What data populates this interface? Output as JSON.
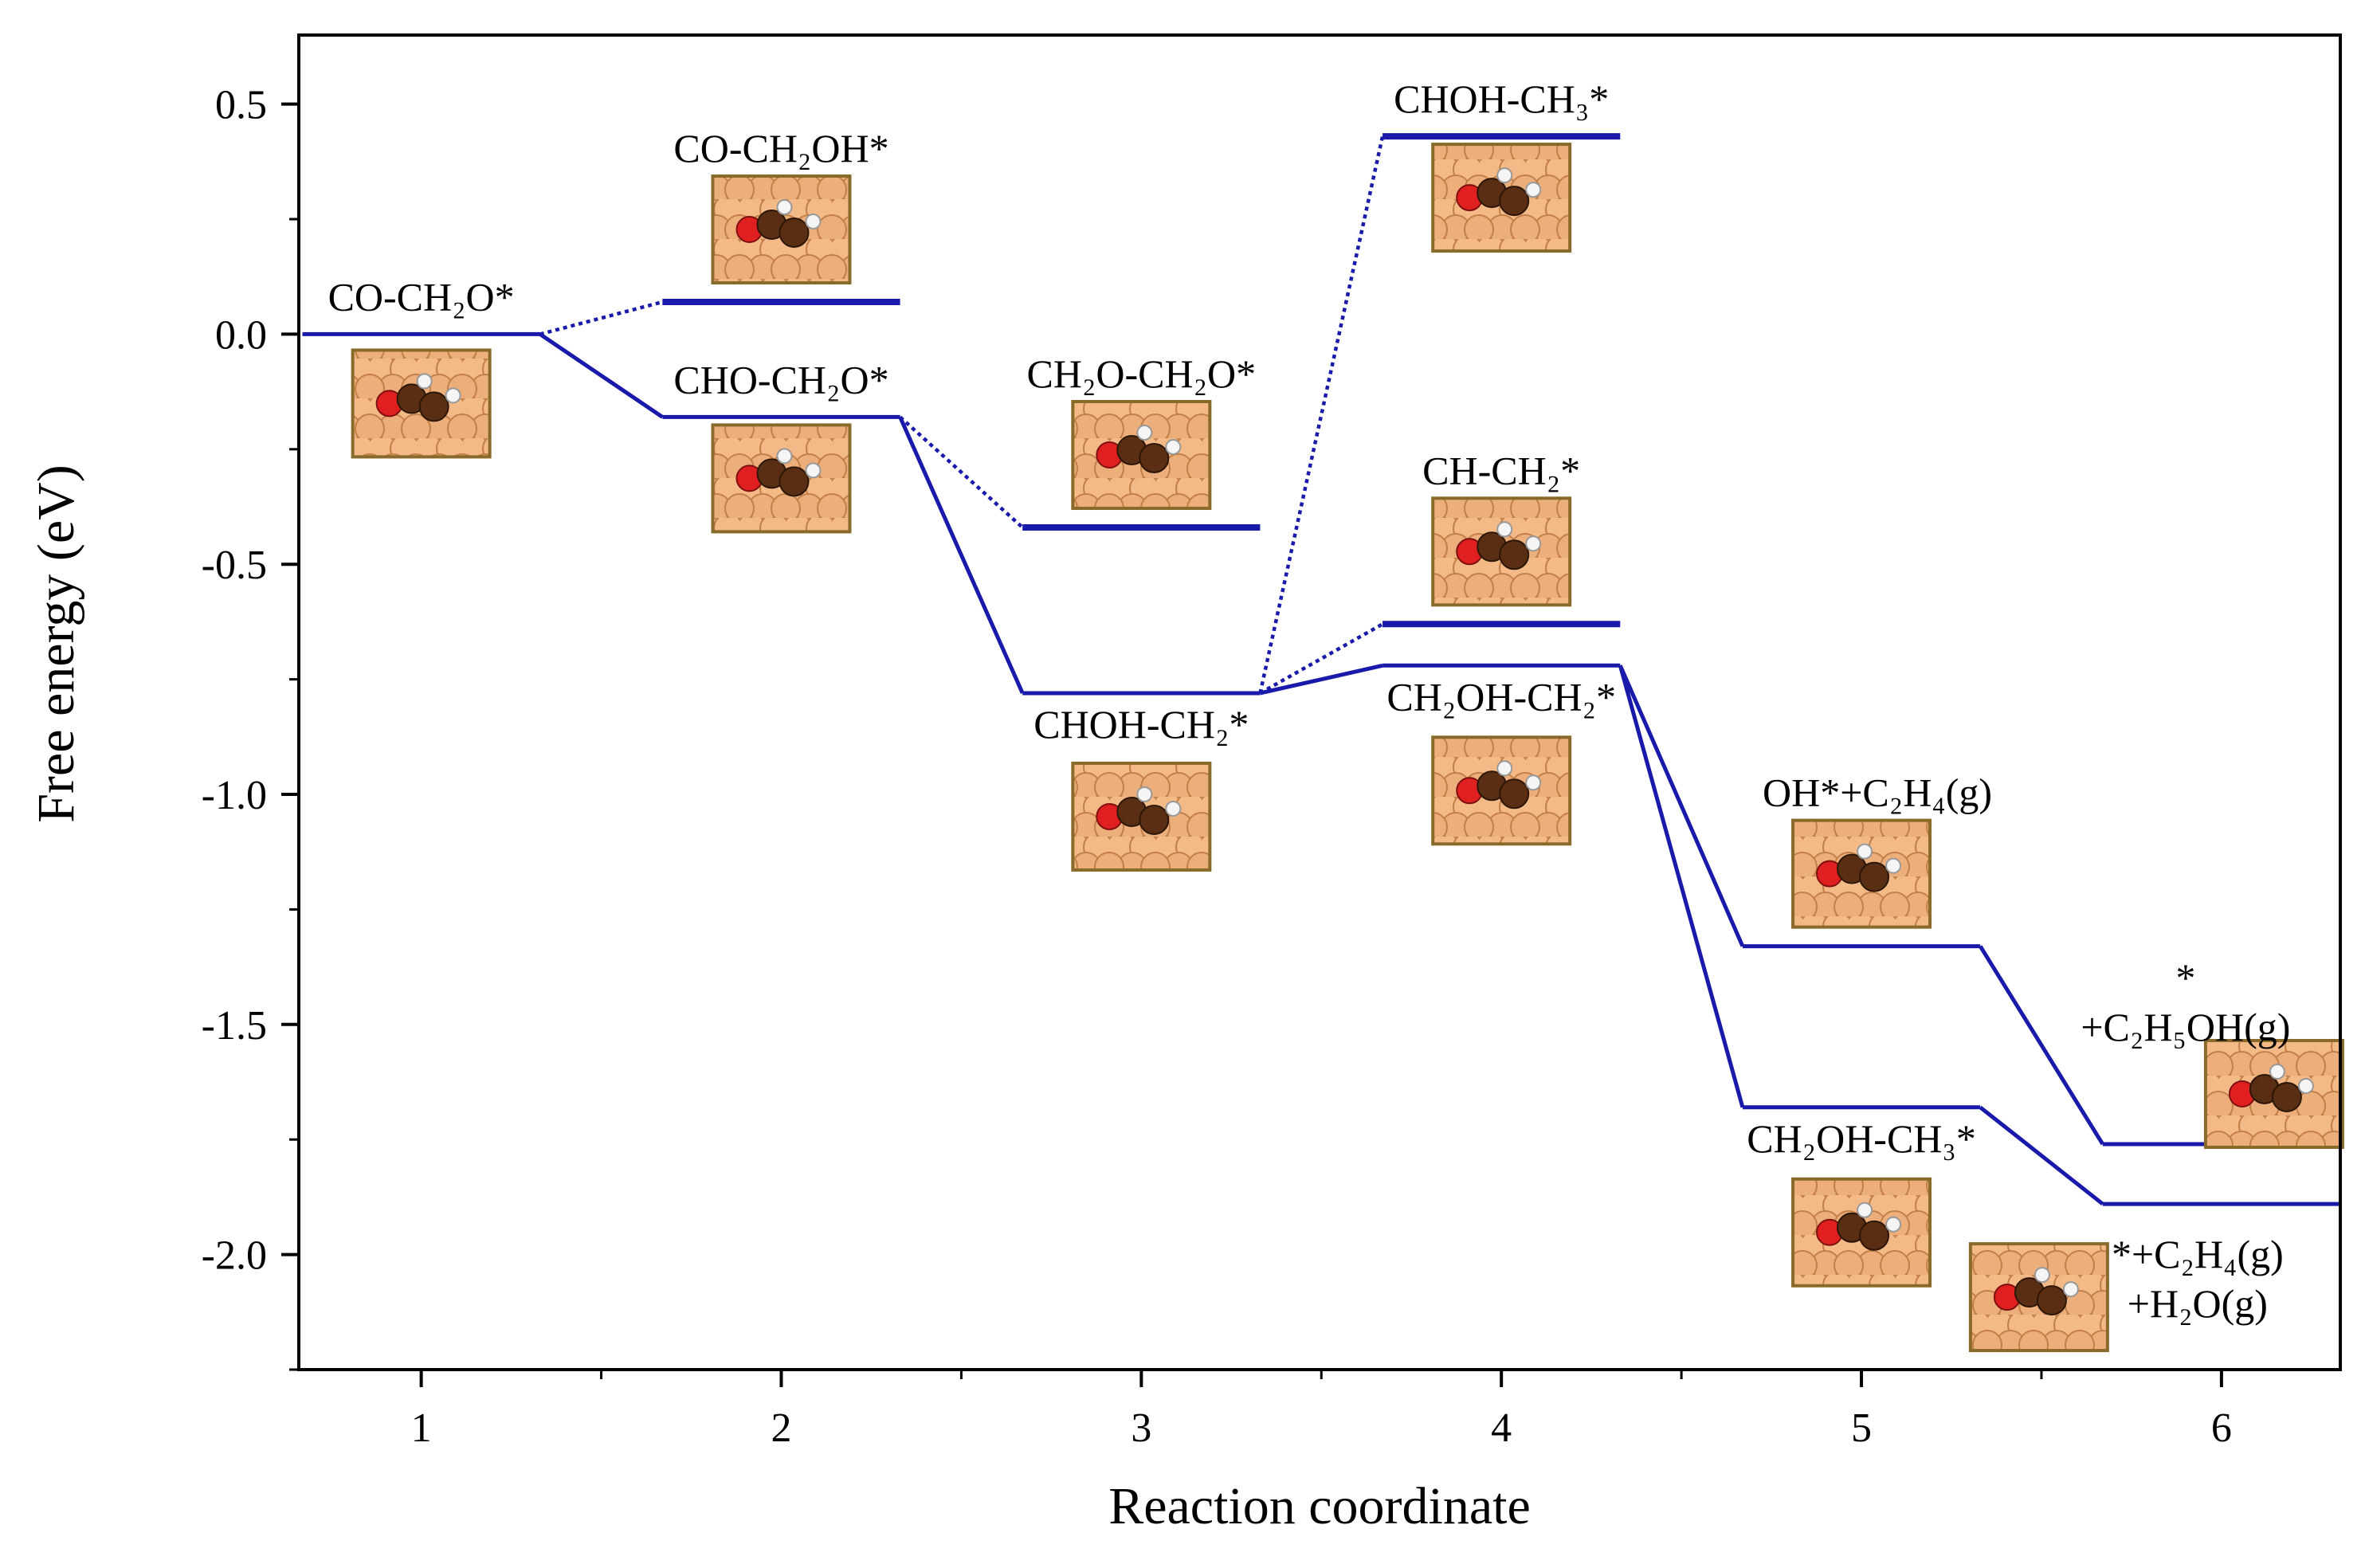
{
  "chart_data": {
    "type": "line",
    "title": "",
    "xlabel": "Reaction coordinate",
    "ylabel": "Free energy (eV)",
    "xlim": [
      0.66,
      6.33
    ],
    "ylim": [
      -2.25,
      0.65
    ],
    "xticks": [
      1,
      2,
      3,
      4,
      5,
      6
    ],
    "xtick_labels": [
      "1",
      "2",
      "3",
      "4",
      "5",
      "6"
    ],
    "yticks": [
      0.5,
      0.0,
      -0.5,
      -1.0,
      -1.5,
      -2.0
    ],
    "ytick_labels": [
      "0.5",
      "0.0",
      "-0.5",
      "-1.0",
      "-1.5",
      "-2.0"
    ],
    "grid": false,
    "line_color": "#1a1aaa",
    "levels": [
      {
        "id": "co-ch2o",
        "x": 1,
        "energy": 0.0,
        "label": "CO-CH₂O*",
        "label_pos": "above",
        "path": "main"
      },
      {
        "id": "co-ch2oh",
        "x": 2,
        "energy": 0.07,
        "label": "CO-CH₂OH*",
        "label_pos": "above",
        "path": "side"
      },
      {
        "id": "cho-ch2o",
        "x": 2,
        "energy": -0.18,
        "label": "CHO-CH₂O*",
        "label_pos": "above",
        "path": "main"
      },
      {
        "id": "ch2o-ch2o",
        "x": 3,
        "energy": -0.42,
        "label": "CH₂O-CH₂O*",
        "label_pos": "above",
        "path": "side"
      },
      {
        "id": "choh-ch2",
        "x": 3,
        "energy": -0.78,
        "label": "CHOH-CH₂*",
        "label_pos": "below",
        "path": "main"
      },
      {
        "id": "choh-ch3",
        "x": 4,
        "energy": 0.43,
        "label": "CHOH-CH₃*",
        "label_pos": "above",
        "path": "side"
      },
      {
        "id": "ch-ch2",
        "x": 4,
        "energy": -0.63,
        "label": "CH-CH₂*",
        "label_pos": "above",
        "path": "side"
      },
      {
        "id": "ch2oh-ch2",
        "x": 4,
        "energy": -0.72,
        "label": "CH₂OH-CH₂*",
        "label_pos": "below",
        "path": "main"
      },
      {
        "id": "oh-c2h4",
        "x": 5,
        "energy": -1.33,
        "label": "OH*+C₂H₄(g)",
        "label_pos": "above",
        "path": "main"
      },
      {
        "id": "ch2oh-ch3",
        "x": 5,
        "energy": -1.68,
        "label": "CH₂OH-CH₃*",
        "label_pos": "below",
        "path": "main"
      },
      {
        "id": "c2h5oh",
        "x": 6,
        "energy": -1.76,
        "label": "*",
        "label2": "+C₂H₅OH(g)",
        "label_pos": "above",
        "path": "main"
      },
      {
        "id": "c2h4-h2o",
        "x": 6,
        "energy": -1.89,
        "label": "*+C₂H₄(g)",
        "label2": "+H₂O(g)",
        "label_pos": "below",
        "path": "main"
      }
    ],
    "series": [
      {
        "name": "main-to-ethylene-water",
        "style": "solid",
        "steps": [
          "co-ch2o",
          "cho-ch2o",
          "choh-ch2",
          "ch2oh-ch2",
          "ch2oh-ch3",
          "c2h4-h2o"
        ]
      },
      {
        "name": "main-to-ethanol",
        "style": "solid",
        "steps": [
          "ch2oh-ch2",
          "oh-c2h4",
          "c2h5oh"
        ]
      },
      {
        "name": "side-co-ch2oh",
        "style": "dotted",
        "steps": [
          "co-ch2o",
          "co-ch2oh"
        ]
      },
      {
        "name": "side-ch2o-ch2o",
        "style": "dotted",
        "steps": [
          "cho-ch2o",
          "ch2o-ch2o"
        ]
      },
      {
        "name": "side-choh-ch3",
        "style": "dotted",
        "steps": [
          "choh-ch2",
          "choh-ch3"
        ]
      },
      {
        "name": "side-ch-ch2",
        "style": "dotted",
        "steps": [
          "choh-ch2",
          "ch-ch2"
        ]
      }
    ]
  }
}
